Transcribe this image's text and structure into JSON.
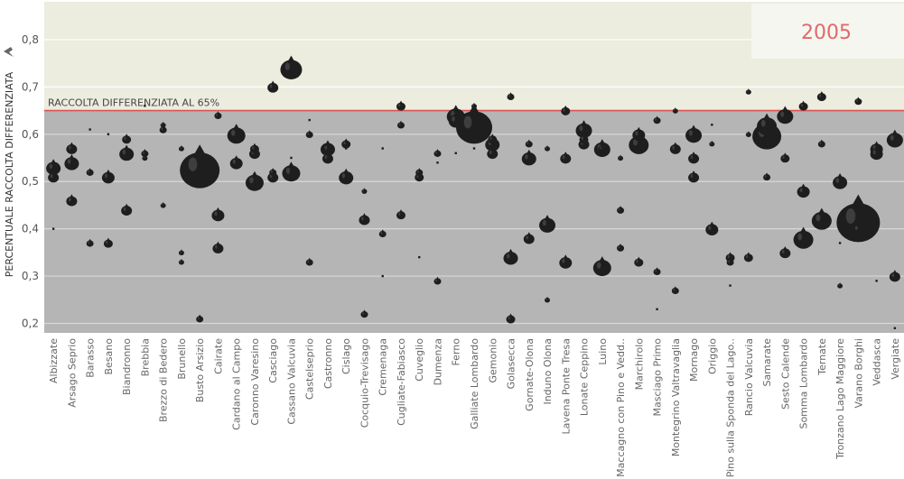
{
  "chart_data": {
    "type": "scatter",
    "title": "",
    "year_label": "2005",
    "xlabel": "",
    "ylabel": "PERCENTUALE RACCOLTA DIFFERENZIATA",
    "ylabel_icon": "pin-icon",
    "ylim": [
      0.18,
      0.88
    ],
    "yticks": [
      "0,2",
      "0,3",
      "0,4",
      "0,5",
      "0,6",
      "0,7",
      "0,8"
    ],
    "ytick_values": [
      0.2,
      0.3,
      0.4,
      0.5,
      0.6,
      0.7,
      0.8
    ],
    "reference_line": {
      "value": 0.65,
      "label": "RACCOLTA DIFFERENZIATA AL 65%",
      "color": "#d9534f"
    },
    "colors": {
      "above_band": "#ececdf",
      "below_band": "#b5b5b5",
      "marker": "#1e1e1e"
    },
    "categories": [
      "Albizzate",
      "Arsago Seprio",
      "Barasso",
      "Besano",
      "Biandronno",
      "Brebbia",
      "Brezzo di Bedero",
      "Brunello",
      "Busto Arsizio",
      "Cairate",
      "Cardano al Campo",
      "Caronno Varesino",
      "Casciago",
      "Cassano Valcuvia",
      "Castelseprio",
      "Castronno",
      "Cislago",
      "Cocquio-Trevisago",
      "Cremenaga",
      "Cugliate-Fabiasco",
      "Cuveglio",
      "Dumenza",
      "Ferno",
      "Galliate Lombardo",
      "Gemonio",
      "Golasecca",
      "Gornate-Olona",
      "Induno Olona",
      "Lavena Ponte Tresa",
      "Lonate Ceppino",
      "Luino",
      "Maccagno con Pino e Vedd..",
      "Marchirolo",
      "Masciago Primo",
      "Montegrino Valtravaglia",
      "Mornago",
      "Origgio",
      "Pino sulla Sponda del Lago..",
      "Rancio Valcuvia",
      "Samarate",
      "Sesto Calende",
      "Somma Lombardo",
      "Ternate",
      "Tronzano Lago Maggiore",
      "Varano Borghi",
      "Veddasca",
      "Vergiate"
    ],
    "points": [
      {
        "x": "Albizzate",
        "y": 0.4,
        "size": 2
      },
      {
        "x": "Albizzate",
        "y": 0.51,
        "size": 6
      },
      {
        "x": "Albizzate",
        "y": 0.53,
        "size": 8
      },
      {
        "x": "Arsago Seprio",
        "y": 0.54,
        "size": 8
      },
      {
        "x": "Arsago Seprio",
        "y": 0.46,
        "size": 6
      },
      {
        "x": "Arsago Seprio",
        "y": 0.57,
        "size": 6
      },
      {
        "x": "Barasso",
        "y": 0.61,
        "size": 2
      },
      {
        "x": "Barasso",
        "y": 0.37,
        "size": 4
      },
      {
        "x": "Barasso",
        "y": 0.52,
        "size": 4
      },
      {
        "x": "Besano",
        "y": 0.6,
        "size": 2
      },
      {
        "x": "Besano",
        "y": 0.37,
        "size": 5
      },
      {
        "x": "Besano",
        "y": 0.51,
        "size": 7
      },
      {
        "x": "Biandronno",
        "y": 0.56,
        "size": 8
      },
      {
        "x": "Biandronno",
        "y": 0.59,
        "size": 5
      },
      {
        "x": "Biandronno",
        "y": 0.44,
        "size": 6
      },
      {
        "x": "Brebbia",
        "y": 0.66,
        "size": 2
      },
      {
        "x": "Brebbia",
        "y": 0.56,
        "size": 4
      },
      {
        "x": "Brebbia",
        "y": 0.55,
        "size": 3
      },
      {
        "x": "Brezzo di Bedero",
        "y": 0.61,
        "size": 4
      },
      {
        "x": "Brezzo di Bedero",
        "y": 0.45,
        "size": 3
      },
      {
        "x": "Brezzo di Bedero",
        "y": 0.62,
        "size": 3
      },
      {
        "x": "Brunello",
        "y": 0.33,
        "size": 3
      },
      {
        "x": "Brunello",
        "y": 0.57,
        "size": 3
      },
      {
        "x": "Brunello",
        "y": 0.35,
        "size": 3
      },
      {
        "x": "Busto Arsizio",
        "y": 0.53,
        "size": 22
      },
      {
        "x": "Busto Arsizio",
        "y": 0.21,
        "size": 4
      },
      {
        "x": "Cairate",
        "y": 0.64,
        "size": 4
      },
      {
        "x": "Cairate",
        "y": 0.43,
        "size": 7
      },
      {
        "x": "Cairate",
        "y": 0.36,
        "size": 6
      },
      {
        "x": "Cardano al Campo",
        "y": 0.6,
        "size": 10
      },
      {
        "x": "Cardano al Campo",
        "y": 0.54,
        "size": 7
      },
      {
        "x": "Caronno Varesino",
        "y": 0.5,
        "size": 10
      },
      {
        "x": "Caronno Varesino",
        "y": 0.56,
        "size": 6
      },
      {
        "x": "Caronno Varesino",
        "y": 0.57,
        "size": 5
      },
      {
        "x": "Casciago",
        "y": 0.52,
        "size": 4
      },
      {
        "x": "Casciago",
        "y": 0.51,
        "size": 6
      },
      {
        "x": "Casciago",
        "y": 0.7,
        "size": 6
      },
      {
        "x": "Cassano Valcuvia",
        "y": 0.74,
        "size": 12
      },
      {
        "x": "Cassano Valcuvia",
        "y": 0.55,
        "size": 2
      },
      {
        "x": "Cassano Valcuvia",
        "y": 0.52,
        "size": 10
      },
      {
        "x": "Castelseprio",
        "y": 0.63,
        "size": 2
      },
      {
        "x": "Castelseprio",
        "y": 0.6,
        "size": 4
      },
      {
        "x": "Castelseprio",
        "y": 0.33,
        "size": 4
      },
      {
        "x": "Castronno",
        "y": 0.57,
        "size": 8
      },
      {
        "x": "Castronno",
        "y": 0.57,
        "size": 6
      },
      {
        "x": "Castronno",
        "y": 0.55,
        "size": 6
      },
      {
        "x": "Cislago",
        "y": 0.51,
        "size": 8
      },
      {
        "x": "Cislago",
        "y": 0.57,
        "size": 2
      },
      {
        "x": "Cislago",
        "y": 0.58,
        "size": 5
      },
      {
        "x": "Cocquio-Trevisago",
        "y": 0.22,
        "size": 4
      },
      {
        "x": "Cocquio-Trevisago",
        "y": 0.42,
        "size": 6
      },
      {
        "x": "Cocquio-Trevisago",
        "y": 0.48,
        "size": 3
      },
      {
        "x": "Cremenaga",
        "y": 0.39,
        "size": 4
      },
      {
        "x": "Cremenaga",
        "y": 0.3,
        "size": 2
      },
      {
        "x": "Cremenaga",
        "y": 0.57,
        "size": 2
      },
      {
        "x": "Cugliate-Fabiasco",
        "y": 0.43,
        "size": 5
      },
      {
        "x": "Cugliate-Fabiasco",
        "y": 0.66,
        "size": 5
      },
      {
        "x": "Cugliate-Fabiasco",
        "y": 0.62,
        "size": 4
      },
      {
        "x": "Cuveglio",
        "y": 0.34,
        "size": 1
      },
      {
        "x": "Cuveglio",
        "y": 0.51,
        "size": 5
      },
      {
        "x": "Cuveglio",
        "y": 0.52,
        "size": 4
      },
      {
        "x": "Dumenza",
        "y": 0.56,
        "size": 4
      },
      {
        "x": "Dumenza",
        "y": 0.29,
        "size": 4
      },
      {
        "x": "Dumenza",
        "y": 0.54,
        "size": 1
      },
      {
        "x": "Ferno",
        "y": 0.64,
        "size": 10
      },
      {
        "x": "Ferno",
        "y": 0.63,
        "size": 8
      },
      {
        "x": "Ferno",
        "y": 0.56,
        "size": 2
      },
      {
        "x": "Galliate Lombardo",
        "y": 0.62,
        "size": 20
      },
      {
        "x": "Galliate Lombardo",
        "y": 0.66,
        "size": 3
      },
      {
        "x": "Galliate Lombardo",
        "y": 0.57,
        "size": 2
      },
      {
        "x": "Gemonio",
        "y": 0.58,
        "size": 8
      },
      {
        "x": "Gemonio",
        "y": 0.56,
        "size": 6
      },
      {
        "x": "Gemonio",
        "y": 0.59,
        "size": 5
      },
      {
        "x": "Golasecca",
        "y": 0.34,
        "size": 8
      },
      {
        "x": "Golasecca",
        "y": 0.21,
        "size": 5
      },
      {
        "x": "Golasecca",
        "y": 0.68,
        "size": 4
      },
      {
        "x": "Gornate-Olona",
        "y": 0.38,
        "size": 6
      },
      {
        "x": "Gornate-Olona",
        "y": 0.55,
        "size": 8
      },
      {
        "x": "Gornate-Olona",
        "y": 0.58,
        "size": 4
      },
      {
        "x": "Induno Olona",
        "y": 0.25,
        "size": 3
      },
      {
        "x": "Induno Olona",
        "y": 0.57,
        "size": 3
      },
      {
        "x": "Induno Olona",
        "y": 0.41,
        "size": 9
      },
      {
        "x": "Lavena Ponte Tresa",
        "y": 0.65,
        "size": 5
      },
      {
        "x": "Lavena Ponte Tresa",
        "y": 0.55,
        "size": 6
      },
      {
        "x": "Lavena Ponte Tresa",
        "y": 0.33,
        "size": 7
      },
      {
        "x": "Lonate Ceppino",
        "y": 0.61,
        "size": 9
      },
      {
        "x": "Lonate Ceppino",
        "y": 0.59,
        "size": 5
      },
      {
        "x": "Lonate Ceppino",
        "y": 0.58,
        "size": 6
      },
      {
        "x": "Luino",
        "y": 0.57,
        "size": 9
      },
      {
        "x": "Luino",
        "y": 0.57,
        "size": 4
      },
      {
        "x": "Luino",
        "y": 0.32,
        "size": 10
      },
      {
        "x": "Maccagno con Pino e Vedd..",
        "y": 0.36,
        "size": 4
      },
      {
        "x": "Maccagno con Pino e Vedd..",
        "y": 0.44,
        "size": 4
      },
      {
        "x": "Maccagno con Pino e Vedd..",
        "y": 0.55,
        "size": 3
      },
      {
        "x": "Marchirolo",
        "y": 0.58,
        "size": 11
      },
      {
        "x": "Marchirolo",
        "y": 0.6,
        "size": 7
      },
      {
        "x": "Marchirolo",
        "y": 0.33,
        "size": 5
      },
      {
        "x": "Masciago Primo",
        "y": 0.23,
        "size": 2
      },
      {
        "x": "Masciago Primo",
        "y": 0.63,
        "size": 4
      },
      {
        "x": "Masciago Primo",
        "y": 0.31,
        "size": 4
      },
      {
        "x": "Montegrino Valtravaglia",
        "y": 0.27,
        "size": 4
      },
      {
        "x": "Montegrino Valtravaglia",
        "y": 0.65,
        "size": 3
      },
      {
        "x": "Montegrino Valtravaglia",
        "y": 0.57,
        "size": 6
      },
      {
        "x": "Mornago",
        "y": 0.51,
        "size": 6
      },
      {
        "x": "Mornago",
        "y": 0.55,
        "size": 6
      },
      {
        "x": "Mornago",
        "y": 0.6,
        "size": 9
      },
      {
        "x": "Origgio",
        "y": 0.4,
        "size": 7
      },
      {
        "x": "Origgio",
        "y": 0.58,
        "size": 3
      },
      {
        "x": "Origgio",
        "y": 0.62,
        "size": 2
      },
      {
        "x": "Pino sulla Sponda del Lago..",
        "y": 0.28,
        "size": 2
      },
      {
        "x": "Pino sulla Sponda del Lago..",
        "y": 0.34,
        "size": 5
      },
      {
        "x": "Pino sulla Sponda del Lago..",
        "y": 0.33,
        "size": 4
      },
      {
        "x": "Rancio Valcuvia",
        "y": 0.6,
        "size": 3
      },
      {
        "x": "Rancio Valcuvia",
        "y": 0.69,
        "size": 3
      },
      {
        "x": "Rancio Valcuvia",
        "y": 0.34,
        "size": 5
      },
      {
        "x": "Samarate",
        "y": 0.62,
        "size": 11
      },
      {
        "x": "Samarate",
        "y": 0.51,
        "size": 4
      },
      {
        "x": "Samarate",
        "y": 0.6,
        "size": 16
      },
      {
        "x": "Sesto Calende",
        "y": 0.64,
        "size": 9
      },
      {
        "x": "Sesto Calende",
        "y": 0.55,
        "size": 5
      },
      {
        "x": "Sesto Calende",
        "y": 0.35,
        "size": 6
      },
      {
        "x": "Somma Lombardo",
        "y": 0.38,
        "size": 11
      },
      {
        "x": "Somma Lombardo",
        "y": 0.48,
        "size": 7
      },
      {
        "x": "Somma Lombardo",
        "y": 0.66,
        "size": 5
      },
      {
        "x": "Ternate",
        "y": 0.58,
        "size": 4
      },
      {
        "x": "Ternate",
        "y": 0.42,
        "size": 11
      },
      {
        "x": "Ternate",
        "y": 0.68,
        "size": 5
      },
      {
        "x": "Tronzano Lago Maggiore",
        "y": 0.37,
        "size": 2
      },
      {
        "x": "Tronzano Lago Maggiore",
        "y": 0.5,
        "size": 8
      },
      {
        "x": "Tronzano Lago Maggiore",
        "y": 0.28,
        "size": 3
      },
      {
        "x": "Varano Borghi",
        "y": 0.42,
        "size": 24
      },
      {
        "x": "Varano Borghi",
        "y": 0.67,
        "size": 4
      },
      {
        "x": "Varano Borghi",
        "y": 0.4,
        "size": 6
      },
      {
        "x": "Veddasca",
        "y": 0.29,
        "size": 2
      },
      {
        "x": "Veddasca",
        "y": 0.57,
        "size": 7
      },
      {
        "x": "Veddasca",
        "y": 0.56,
        "size": 7
      },
      {
        "x": "Vergiate",
        "y": 0.59,
        "size": 9
      },
      {
        "x": "Vergiate",
        "y": 0.3,
        "size": 6
      },
      {
        "x": "Vergiate",
        "y": 0.19,
        "size": 2
      }
    ],
    "grid": true,
    "legend": "none"
  }
}
